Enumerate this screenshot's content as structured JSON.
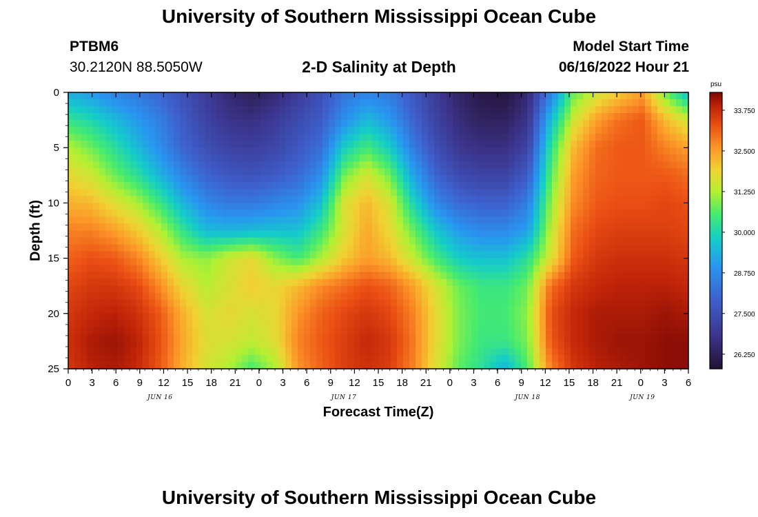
{
  "header": {
    "title": "University of Southern Mississippi Ocean Cube",
    "station_id": "PTBM6",
    "station_coords": "30.2120N  88.5050W",
    "subtitle": "2-D Salinity at Depth",
    "model_start_label": "Model Start Time",
    "model_start_value": "06/16/2022 Hour 21"
  },
  "footer": {
    "title": "University of Southern Mississippi Ocean Cube"
  },
  "chart_data": {
    "type": "heatmap",
    "title": "2-D Salinity at Depth",
    "xlabel": "Forecast Time(Z)",
    "ylabel": "Depth (ft)",
    "x_start_hour": -3,
    "x_end_hour": 78,
    "x_tick_labels": [
      "0",
      "3",
      "6",
      "9",
      "12",
      "15",
      "18",
      "21",
      "0",
      "3",
      "6",
      "9",
      "12",
      "15",
      "18",
      "21",
      "0",
      "3",
      "6",
      "9",
      "12",
      "15",
      "18",
      "21",
      "0",
      "3",
      "6"
    ],
    "day_labels": [
      {
        "text": "JUN 16",
        "hour": 9
      },
      {
        "text": "JUN 17",
        "hour": 33
      },
      {
        "text": "JUN 18",
        "hour": 57
      },
      {
        "text": "JUN 19",
        "hour": 72
      }
    ],
    "ylim": [
      0,
      25
    ],
    "y_ticks": [
      0,
      5,
      10,
      15,
      20,
      25
    ],
    "colorbar": {
      "unit": "psu",
      "min": 25.8,
      "max": 34.3,
      "tick_labels": [
        "33.750",
        "32.500",
        "31.250",
        "30.000",
        "28.750",
        "27.500",
        "26.250"
      ],
      "tick_values": [
        33.75,
        32.5,
        31.25,
        30.0,
        28.75,
        27.5,
        26.25
      ]
    },
    "depths": [
      0,
      2.5,
      5,
      7.5,
      10,
      12.5,
      15,
      17.5,
      20,
      22.5,
      25
    ],
    "x_hours": [
      -3,
      0,
      3,
      6,
      9,
      12,
      15,
      18,
      21,
      24,
      27,
      30,
      33,
      36,
      39,
      42,
      45,
      48,
      51,
      54,
      57,
      60,
      63,
      66,
      69,
      72,
      75,
      78
    ],
    "salinity": [
      [
        29.3,
        29.0,
        28.6,
        28.4,
        28.0,
        27.5,
        27.0,
        26.5,
        26.2,
        26.5,
        27.0,
        27.5,
        28.3,
        28.6,
        28.4,
        27.7,
        27.0,
        26.4,
        26.0,
        25.9,
        26.5,
        28.5,
        30.7,
        31.5,
        32.0,
        32.5,
        30.8,
        29.5
      ],
      [
        30.3,
        30.0,
        29.5,
        29.0,
        28.5,
        27.8,
        27.2,
        26.8,
        26.7,
        27.0,
        27.4,
        27.8,
        28.8,
        29.5,
        29.0,
        28.0,
        27.2,
        26.6,
        26.3,
        26.3,
        26.8,
        29.5,
        31.5,
        32.5,
        33.0,
        33.2,
        32.2,
        31.5
      ],
      [
        31.3,
        30.8,
        30.2,
        29.5,
        28.8,
        28.0,
        27.5,
        27.2,
        27.1,
        27.3,
        27.7,
        28.2,
        29.8,
        30.5,
        29.8,
        28.5,
        27.5,
        26.9,
        26.7,
        26.7,
        27.2,
        30.2,
        32.2,
        33.0,
        33.2,
        33.2,
        32.8,
        32.5
      ],
      [
        31.8,
        31.5,
        30.8,
        30.2,
        29.4,
        28.6,
        28.0,
        27.7,
        27.6,
        27.8,
        28.1,
        28.8,
        30.8,
        31.6,
        30.8,
        29.2,
        28.0,
        27.4,
        27.2,
        27.2,
        27.8,
        30.6,
        32.5,
        33.1,
        33.2,
        33.2,
        33.2,
        33.0
      ],
      [
        32.3,
        32.2,
        31.7,
        31.2,
        30.4,
        29.4,
        28.7,
        28.4,
        28.4,
        28.6,
        28.8,
        29.6,
        31.6,
        32.2,
        31.6,
        30.0,
        28.7,
        28.1,
        27.9,
        27.9,
        28.5,
        31.0,
        32.7,
        33.2,
        33.3,
        33.3,
        33.4,
        33.3
      ],
      [
        32.8,
        32.8,
        32.5,
        32.0,
        31.3,
        30.3,
        29.5,
        29.4,
        29.5,
        29.6,
        29.6,
        30.4,
        31.6,
        32.4,
        31.8,
        30.8,
        29.7,
        29.0,
        28.7,
        28.7,
        29.1,
        31.3,
        33.0,
        33.4,
        33.5,
        33.5,
        33.5,
        33.4
      ],
      [
        33.1,
        33.3,
        33.2,
        32.8,
        32.0,
        31.2,
        31.0,
        31.5,
        31.8,
        31.0,
        30.5,
        31.2,
        32.0,
        32.5,
        32.2,
        31.4,
        30.5,
        29.8,
        29.6,
        29.6,
        30.2,
        31.6,
        33.2,
        33.6,
        33.7,
        33.7,
        33.7,
        33.6
      ],
      [
        33.4,
        33.6,
        33.6,
        33.4,
        32.7,
        31.8,
        31.3,
        31.6,
        32.0,
        31.8,
        32.2,
        32.7,
        33.0,
        33.3,
        33.1,
        32.5,
        31.6,
        30.8,
        30.4,
        30.4,
        30.8,
        33.0,
        33.6,
        33.8,
        33.9,
        33.9,
        33.9,
        33.8
      ],
      [
        33.6,
        33.8,
        33.9,
        33.7,
        33.2,
        32.3,
        31.6,
        31.8,
        31.6,
        31.8,
        32.6,
        33.1,
        33.4,
        33.6,
        33.4,
        32.8,
        31.8,
        30.9,
        30.5,
        30.5,
        31.0,
        33.3,
        33.8,
        34.0,
        34.0,
        34.0,
        34.1,
        34.0
      ],
      [
        33.7,
        34.0,
        34.1,
        33.9,
        33.3,
        32.4,
        31.7,
        31.6,
        31.4,
        31.7,
        32.8,
        33.2,
        33.5,
        33.8,
        33.6,
        32.9,
        31.8,
        30.9,
        30.4,
        30.4,
        30.9,
        33.2,
        33.8,
        34.0,
        34.1,
        34.1,
        34.2,
        34.2
      ],
      [
        33.6,
        33.9,
        34.0,
        33.8,
        33.2,
        32.3,
        31.6,
        31.2,
        30.5,
        31.2,
        32.6,
        33.1,
        33.5,
        33.7,
        33.5,
        32.8,
        31.7,
        30.7,
        30.2,
        29.4,
        30.6,
        32.8,
        33.6,
        33.9,
        34.0,
        34.1,
        34.2,
        34.2
      ]
    ]
  }
}
